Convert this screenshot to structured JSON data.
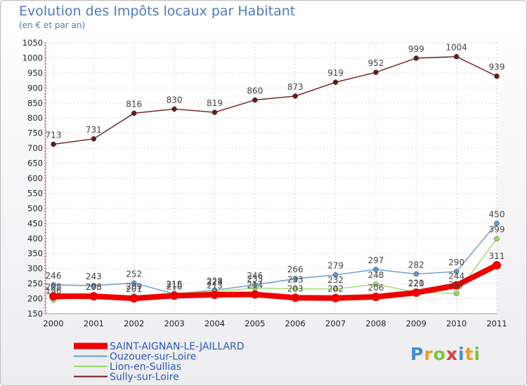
{
  "chart_data": {
    "type": "line",
    "title": "Evolution des Impôts locaux par Habitant",
    "subtitle": "(en € et par an)",
    "categories": [
      "2000",
      "2001",
      "2002",
      "2003",
      "2004",
      "2005",
      "2006",
      "2007",
      "2008",
      "2009",
      "2010",
      "2011"
    ],
    "ylim": [
      150,
      1050
    ],
    "yticks": [
      150,
      200,
      250,
      300,
      350,
      400,
      450,
      500,
      550,
      600,
      650,
      700,
      750,
      800,
      850,
      900,
      950,
      1000,
      1050
    ],
    "series": [
      {
        "name": "Sully-sur-Loire",
        "color": "#6b1a1a",
        "values": [
          713,
          731,
          816,
          830,
          819,
          860,
          873,
          919,
          952,
          999,
          1004,
          939
        ]
      },
      {
        "name": "Ouzouer-sur-Loire",
        "color": "#6699cc",
        "values": [
          246,
          243,
          252,
          216,
          228,
          246,
          266,
          279,
          297,
          282,
          290,
          450
        ]
      },
      {
        "name": "Lion-en-Sullias",
        "color": "#99dd66",
        "values": [
          196,
          208,
          209,
          218,
          223,
          235,
          233,
          232,
          248,
          221,
          217,
          399
        ]
      },
      {
        "name": "SAINT-AIGNAN-LE-JAILLARD",
        "color": "#ee0000",
        "values": [
          208,
          208,
          201,
          210,
          213,
          214,
          203,
          202,
          206,
          220,
          244,
          311
        ]
      }
    ],
    "legend": [
      {
        "name": "SAINT-AIGNAN-LE-JAILLARD",
        "color": "#ee0000",
        "text_color": "#2b55c0"
      },
      {
        "name": "Ouzouer-sur-Loire",
        "color": "#6699cc",
        "text_color": "#2b55c0"
      },
      {
        "name": "Lion-en-Sullias",
        "color": "#99dd66",
        "text_color": "#2b55c0"
      },
      {
        "name": "Sully-sur-Loire",
        "color": "#6b1a1a",
        "text_color": "#2b55c0"
      }
    ]
  },
  "logo": {
    "letters": [
      "P",
      "r",
      "o",
      "x",
      "i",
      "t",
      "i"
    ],
    "colors": [
      "#3b8fd6",
      "#f29b1d",
      "#7cc242",
      "#e43b3b",
      "#3b8fd6",
      "#f29b1d",
      "#7cc242"
    ]
  }
}
